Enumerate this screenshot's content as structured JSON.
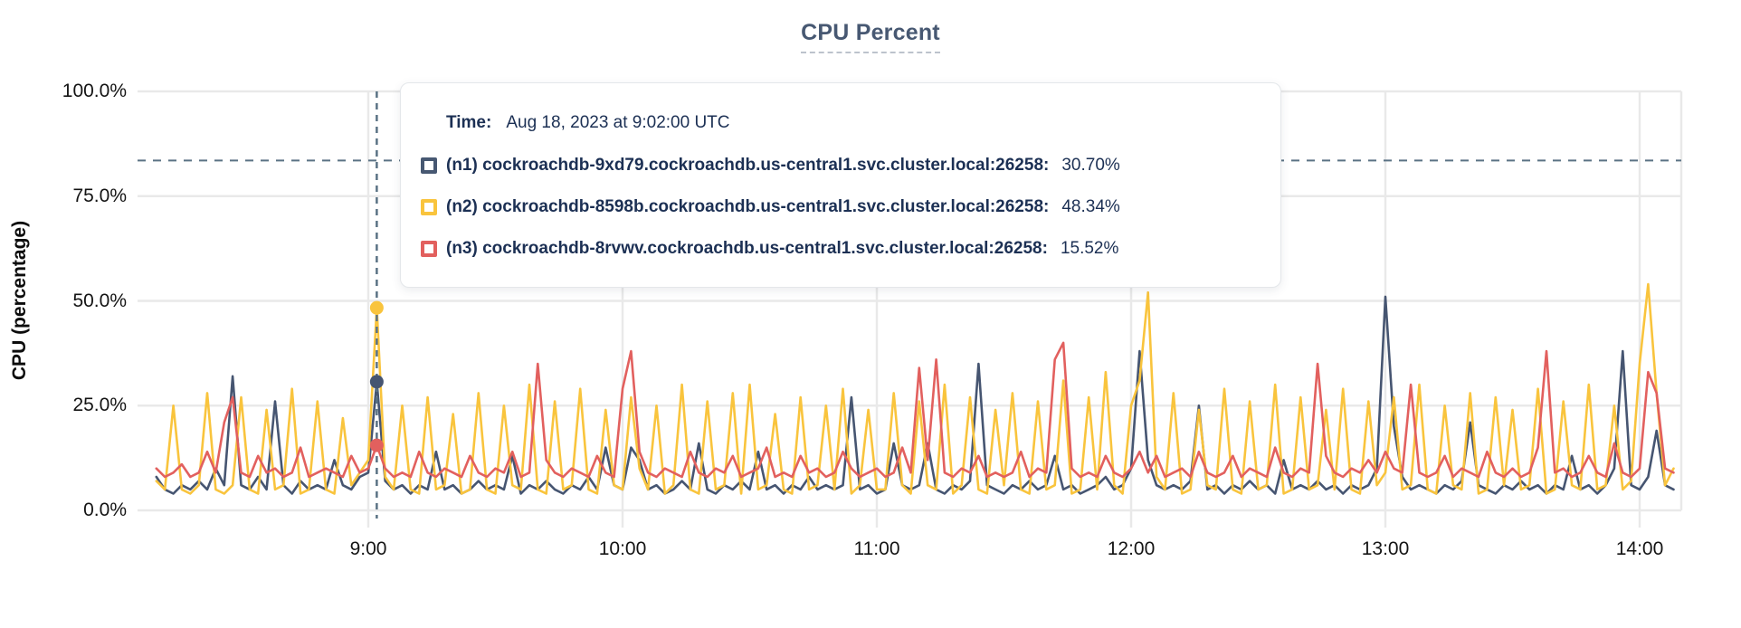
{
  "header": {
    "title": "CPU Percent"
  },
  "y_axis": {
    "title": "CPU (percentage)",
    "ticks": [
      "100.0%",
      "75.0%",
      "50.0%",
      "25.0%",
      "0.0%"
    ]
  },
  "x_axis": {
    "ticks": [
      "9:00",
      "10:00",
      "11:00",
      "12:00",
      "13:00",
      "14:00"
    ]
  },
  "tooltip": {
    "time_label": "Time:",
    "time_value": "Aug 18, 2023 at 9:02:00 UTC",
    "rows": [
      {
        "label": "(n1) cockroachdb-9xd79.cockroachdb.us-central1.svc.cluster.local:26258:",
        "value": "30.70%",
        "color": "#475872"
      },
      {
        "label": "(n2) cockroachdb-8598b.cockroachdb.us-central1.svc.cluster.local:26258:",
        "value": "48.34%",
        "color": "#f9c43d"
      },
      {
        "label": "(n3) cockroachdb-8rvwv.cockroachdb.us-central1.svc.cluster.local:26258:",
        "value": "15.52%",
        "color": "#e2605e"
      }
    ]
  },
  "colors": {
    "title": "#475872",
    "tooltip_text": "#1c3054",
    "grid": "#e9e9e9",
    "dashed_guides": "#5a7284"
  },
  "chart_data": {
    "type": "line",
    "title": "CPU Percent",
    "ylabel": "CPU (percentage)",
    "ylim": [
      0,
      100
    ],
    "y_tick_values": [
      100,
      75,
      50,
      25,
      0
    ],
    "x_tick_labels": [
      "9:00",
      "10:00",
      "11:00",
      "12:00",
      "13:00",
      "14:00"
    ],
    "x_tick_minutes": [
      540,
      600,
      660,
      720,
      780,
      840
    ],
    "x_start_minutes": 490,
    "x_step_minutes": 2,
    "grid": true,
    "legend_position": "tooltip",
    "threshold_line_y": 83.5,
    "crosshair": {
      "time": "Aug 18, 2023 at 9:02:00 UTC",
      "index": 26
    },
    "highlight_points": [
      {
        "series": "n2",
        "value": 48.34
      },
      {
        "series": "n1",
        "value": 30.7
      },
      {
        "series": "n3",
        "value": 15.52
      }
    ],
    "series": [
      {
        "id": "n1",
        "name": "(n1) cockroachdb-9xd79.cockroachdb.us-central1.svc.cluster.local:26258",
        "color": "#465571",
        "values": [
          8,
          5,
          4,
          6,
          5,
          7,
          5,
          10,
          6,
          32,
          6,
          5,
          8,
          5,
          26,
          6,
          4,
          7,
          5,
          6,
          5,
          12,
          6,
          5,
          8,
          9,
          30.7,
          7,
          5,
          6,
          4,
          6,
          5,
          14,
          5,
          6,
          4,
          5,
          7,
          5,
          6,
          5,
          13,
          4,
          6,
          5,
          7,
          5,
          4,
          6,
          5,
          8,
          5,
          15,
          6,
          5,
          15,
          12,
          5,
          6,
          4,
          5,
          7,
          5,
          16,
          5,
          4,
          6,
          5,
          7,
          5,
          14,
          5,
          6,
          4,
          6,
          5,
          8,
          5,
          6,
          5,
          6,
          27,
          5,
          6,
          4,
          5,
          16,
          6,
          5,
          6,
          16,
          5,
          4,
          6,
          5,
          7,
          35,
          6,
          5,
          4,
          6,
          5,
          7,
          5,
          6,
          13,
          5,
          6,
          4,
          5,
          6,
          8,
          5,
          6,
          10,
          38,
          12,
          6,
          5,
          6,
          5,
          7,
          25,
          5,
          6,
          4,
          6,
          5,
          7,
          5,
          6,
          4,
          12,
          5,
          6,
          5,
          7,
          5,
          6,
          4,
          6,
          5,
          6,
          10,
          51,
          20,
          8,
          5,
          6,
          5,
          4,
          6,
          5,
          7,
          21,
          6,
          5,
          4,
          6,
          5,
          7,
          5,
          6,
          4,
          6,
          5,
          13,
          5,
          6,
          4,
          6,
          10,
          38,
          6,
          5,
          8,
          19,
          6,
          5
        ]
      },
      {
        "id": "n2",
        "name": "(n2) cockroachdb-8598b.cockroachdb.us-central1.svc.cluster.local:26258",
        "color": "#f9c43d",
        "values": [
          7,
          5,
          25,
          5,
          4,
          6,
          28,
          5,
          4,
          6,
          27,
          5,
          4,
          24,
          5,
          6,
          29,
          4,
          5,
          26,
          5,
          4,
          22,
          6,
          9,
          12,
          48.34,
          8,
          5,
          25,
          5,
          4,
          27,
          5,
          6,
          23,
          4,
          5,
          28,
          5,
          4,
          25,
          6,
          5,
          30,
          5,
          4,
          26,
          5,
          6,
          29,
          5,
          4,
          24,
          6,
          5,
          27,
          10,
          5,
          25,
          4,
          6,
          30,
          5,
          4,
          26,
          5,
          6,
          28,
          4,
          30,
          5,
          6,
          23,
          5,
          4,
          27,
          5,
          6,
          25,
          5,
          29,
          4,
          6,
          24,
          5,
          5,
          28,
          6,
          4,
          26,
          6,
          5,
          30,
          4,
          6,
          27,
          5,
          4,
          24,
          6,
          28,
          5,
          4,
          26,
          5,
          6,
          31,
          4,
          5,
          27,
          5,
          33,
          6,
          4,
          25,
          31,
          52,
          8,
          5,
          28,
          4,
          5,
          24,
          6,
          5,
          29,
          5,
          4,
          26,
          5,
          6,
          30,
          4,
          5,
          27,
          5,
          6,
          24,
          5,
          29,
          5,
          4,
          26,
          6,
          9,
          27,
          5,
          6,
          30,
          5,
          4,
          25,
          6,
          5,
          28,
          4,
          5,
          27,
          6,
          24,
          5,
          6,
          29,
          4,
          5,
          26,
          6,
          5,
          30,
          5,
          6,
          25,
          5,
          7,
          35,
          54,
          28,
          6,
          10
        ]
      },
      {
        "id": "n3",
        "name": "(n3) cockroachdb-8rvwv.cockroachdb.us-central1.svc.cluster.local:26258",
        "color": "#e2605e",
        "values": [
          10,
          8,
          9,
          11,
          8,
          9,
          14,
          9,
          21,
          27,
          9,
          8,
          13,
          9,
          10,
          8,
          9,
          15,
          8,
          9,
          10,
          9,
          8,
          13,
          9,
          10,
          15.52,
          10,
          8,
          9,
          8,
          14,
          9,
          8,
          10,
          9,
          8,
          13,
          9,
          8,
          10,
          9,
          14,
          8,
          9,
          35,
          12,
          9,
          8,
          10,
          9,
          8,
          13,
          9,
          8,
          29,
          38,
          14,
          9,
          8,
          10,
          9,
          8,
          14,
          9,
          8,
          10,
          9,
          13,
          8,
          9,
          10,
          15,
          8,
          9,
          8,
          13,
          9,
          10,
          8,
          9,
          14,
          10,
          8,
          9,
          10,
          8,
          9,
          15,
          9,
          34,
          12,
          36,
          9,
          8,
          10,
          9,
          13,
          8,
          9,
          8,
          9,
          14,
          8,
          10,
          9,
          36,
          40,
          10,
          8,
          9,
          8,
          13,
          9,
          8,
          10,
          14,
          9,
          13,
          8,
          9,
          10,
          8,
          14,
          9,
          8,
          9,
          13,
          8,
          10,
          9,
          8,
          15,
          9,
          8,
          10,
          9,
          35,
          13,
          9,
          8,
          10,
          9,
          12,
          9,
          14,
          10,
          9,
          30,
          9,
          8,
          9,
          13,
          8,
          10,
          9,
          8,
          14,
          9,
          8,
          10,
          8,
          9,
          15,
          38,
          9,
          10,
          8,
          9,
          13,
          9,
          8,
          16,
          9,
          8,
          10,
          33,
          28,
          10,
          9
        ]
      }
    ]
  }
}
